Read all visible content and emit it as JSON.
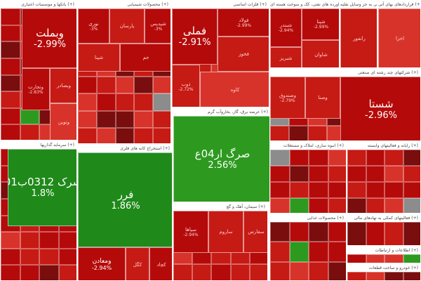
{
  "colors": {
    "down_strong": "#b50a0a",
    "down": "#c61a14",
    "down_light": "#d8332a",
    "down_dark": "#7a0d0d",
    "up": "#2d9a1f",
    "up_strong": "#1f8a1a",
    "neutral": "#8c8c8c"
  },
  "chart_data": {
    "type": "heatmap",
    "title": "",
    "sectors": [
      {
        "name": "بانکها و موسسات اعتباری (+)",
        "tiles": [
          {
            "symbol": "وبملت",
            "change": "-2.99%",
            "value": -2.99,
            "size": "big"
          },
          {
            "symbol": "وتجارت",
            "change": "-2.83%",
            "value": -2.83,
            "size": "small"
          },
          {
            "symbol": "وبصادر",
            "change": "",
            "value": -2.5,
            "size": "small"
          },
          {
            "symbol": "ونوین",
            "change": "",
            "value": -2.2,
            "size": "small"
          }
        ]
      },
      {
        "name": "محصولات شیمیایی (+)",
        "tiles": [
          {
            "symbol": "شپدیس",
            "change": "-3%",
            "value": -3,
            "size": "small"
          },
          {
            "symbol": "نوری",
            "change": "-3%",
            "value": -3,
            "size": "small"
          },
          {
            "symbol": "پارسان",
            "change": "",
            "value": -2.6,
            "size": "small"
          },
          {
            "symbol": "شپنا",
            "change": "",
            "value": -2.4,
            "size": "small"
          },
          {
            "symbol": "جم",
            "change": "",
            "value": -2.9,
            "size": "small"
          }
        ]
      },
      {
        "name": "فلزات اساسی (+)",
        "tiles": [
          {
            "symbol": "فملی",
            "change": "-2.91%",
            "value": -2.91,
            "size": "big"
          },
          {
            "symbol": "فولاد",
            "change": "-2.99%",
            "value": -2.99,
            "size": "small"
          },
          {
            "symbol": "ذوب",
            "change": "-2.72%",
            "value": -2.72,
            "size": "small"
          },
          {
            "symbol": "فخوز",
            "change": "",
            "value": -2.5,
            "size": "small"
          },
          {
            "symbol": "کاوه",
            "change": "",
            "value": -2.3,
            "size": "small"
          }
        ]
      },
      {
        "name": "فراورده های نفتی، کک و سوخت هسته ای (+)",
        "tiles": [
          {
            "symbol": "شبندر",
            "change": "-2.94%",
            "value": -2.94,
            "size": "small"
          },
          {
            "symbol": "شپنا",
            "change": "-2.99%",
            "value": -2.99,
            "size": "small"
          },
          {
            "symbol": "شبریز",
            "change": "",
            "value": -2.6,
            "size": "small"
          },
          {
            "symbol": "شاوان",
            "change": "",
            "value": -2.4,
            "size": "small"
          }
        ]
      },
      {
        "name": "خرده فروشی به جز وسایل نقلیه (+)",
        "tiles": [
          {
            "symbol": "رانفور",
            "change": "",
            "value": -2.7,
            "size": "small"
          }
        ]
      },
      {
        "name": "قراردادهای بهای آتی (+)",
        "tiles": [
          {
            "symbol": "اخزا",
            "change": "",
            "value": -2.1,
            "size": "small"
          }
        ]
      },
      {
        "name": "استخراج کانه های فلزی (+)",
        "tiles": [
          {
            "symbol": "فرر",
            "change": "1.86%",
            "value": 1.86,
            "size": "big"
          },
          {
            "symbol": "ومعادن",
            "change": "-2.94%",
            "value": -2.94,
            "size": "med"
          },
          {
            "symbol": "کگل",
            "change": "",
            "value": -2.6,
            "size": "small"
          },
          {
            "symbol": "کچاد",
            "change": "",
            "value": -2.8,
            "size": "small"
          }
        ]
      },
      {
        "name": "عرضه برق، گاز، بخاروآب گرم (+)",
        "tiles": [
          {
            "symbol": "صرگ ار04ع",
            "change": "2.56%",
            "value": 2.56,
            "size": "big"
          }
        ]
      },
      {
        "name": "شرکتهای چند رشته ای صنعتی (+)",
        "tiles": [
          {
            "symbol": "شستا",
            "change": "-2.96%",
            "value": -2.96,
            "size": "big"
          },
          {
            "symbol": "وصندوق",
            "change": "-2.79%",
            "value": -2.79,
            "size": "small"
          },
          {
            "symbol": "وصنا",
            "change": "",
            "value": -2.5,
            "size": "small"
          }
        ]
      },
      {
        "name": "سرمایه گذاریها (+)",
        "tiles": [
          {
            "symbol": "سرک 0312ب01",
            "change": "1.8%",
            "value": 1.8,
            "size": "big"
          }
        ]
      },
      {
        "name": "سیمان، آهک و گچ (+)",
        "tiles": [
          {
            "symbol": "سپاها",
            "change": "-2.94%",
            "value": -2.94,
            "size": "small"
          },
          {
            "symbol": "ساروم",
            "change": "",
            "value": -2.7,
            "size": "small"
          },
          {
            "symbol": "سفارس",
            "change": "",
            "value": -2.5,
            "size": "small"
          }
        ]
      },
      {
        "name": "انبوه سازی، املاک و مستغلات (+)",
        "tiles": []
      },
      {
        "name": "رایانه و فعالیتهای وابسته (+)",
        "tiles": []
      },
      {
        "name": "محصولات غذایی (+)",
        "tiles": []
      },
      {
        "name": "فعالیتهای کمکی به نهادهای مالی (+)",
        "tiles": []
      },
      {
        "name": "اطلاعات و ارتباطات (+)",
        "tiles": []
      },
      {
        "name": "خودرو و ساخت قطعات (+)",
        "tiles": []
      }
    ]
  }
}
